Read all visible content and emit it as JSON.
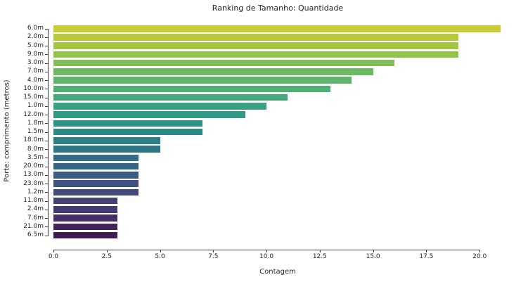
{
  "chart_data": {
    "type": "bar",
    "orientation": "horizontal",
    "title": "Ranking de Tamanho: Quantidade",
    "xlabel": "Contagem",
    "ylabel": "Porte: comprimento (metros)",
    "categories": [
      "6.0m",
      "2.0m",
      "5.0m",
      "9.0m",
      "3.0m",
      "7.0m",
      "4.0m",
      "10.0m",
      "15.0m",
      "1.0m",
      "12.0m",
      "1.8m",
      "1.5m",
      "18.0m",
      "8.0m",
      "3.5m",
      "20.0m",
      "13.0m",
      "23.0m",
      "1.2m",
      "11.0m",
      "2.4m",
      "7.6m",
      "21.0m",
      "6.5m"
    ],
    "values": [
      21,
      19,
      19,
      19,
      16,
      15,
      14,
      13,
      11,
      10,
      9,
      7,
      7,
      5,
      5,
      4,
      4,
      4,
      4,
      4,
      3,
      3,
      3,
      3,
      3
    ],
    "bar_colors": [
      "#c9cc35",
      "#b8c93a",
      "#a5c641",
      "#92c34b",
      "#7fbf56",
      "#6dbb61",
      "#5db66b",
      "#4fb073",
      "#43a97b",
      "#3aa281",
      "#329a84",
      "#2e9186",
      "#2c8987",
      "#2d8087",
      "#2f7786",
      "#326e85",
      "#366583",
      "#3a5c82",
      "#3e537f",
      "#424b7c",
      "#454278",
      "#473972",
      "#462f69",
      "#44245d",
      "#411b54"
    ],
    "xlim": [
      0,
      21.05
    ],
    "xticks": [
      0.0,
      2.5,
      5.0,
      7.5,
      10.0,
      12.5,
      15.0,
      17.5,
      20.0
    ],
    "xtick_labels": [
      "0.0",
      "2.5",
      "5.0",
      "7.5",
      "10.0",
      "12.5",
      "15.0",
      "17.5",
      "20.0"
    ],
    "grid": false,
    "legend": null,
    "style": {
      "background": "#ffffff",
      "spine_color": "#3c3c3c",
      "text_color": "#262626"
    }
  }
}
